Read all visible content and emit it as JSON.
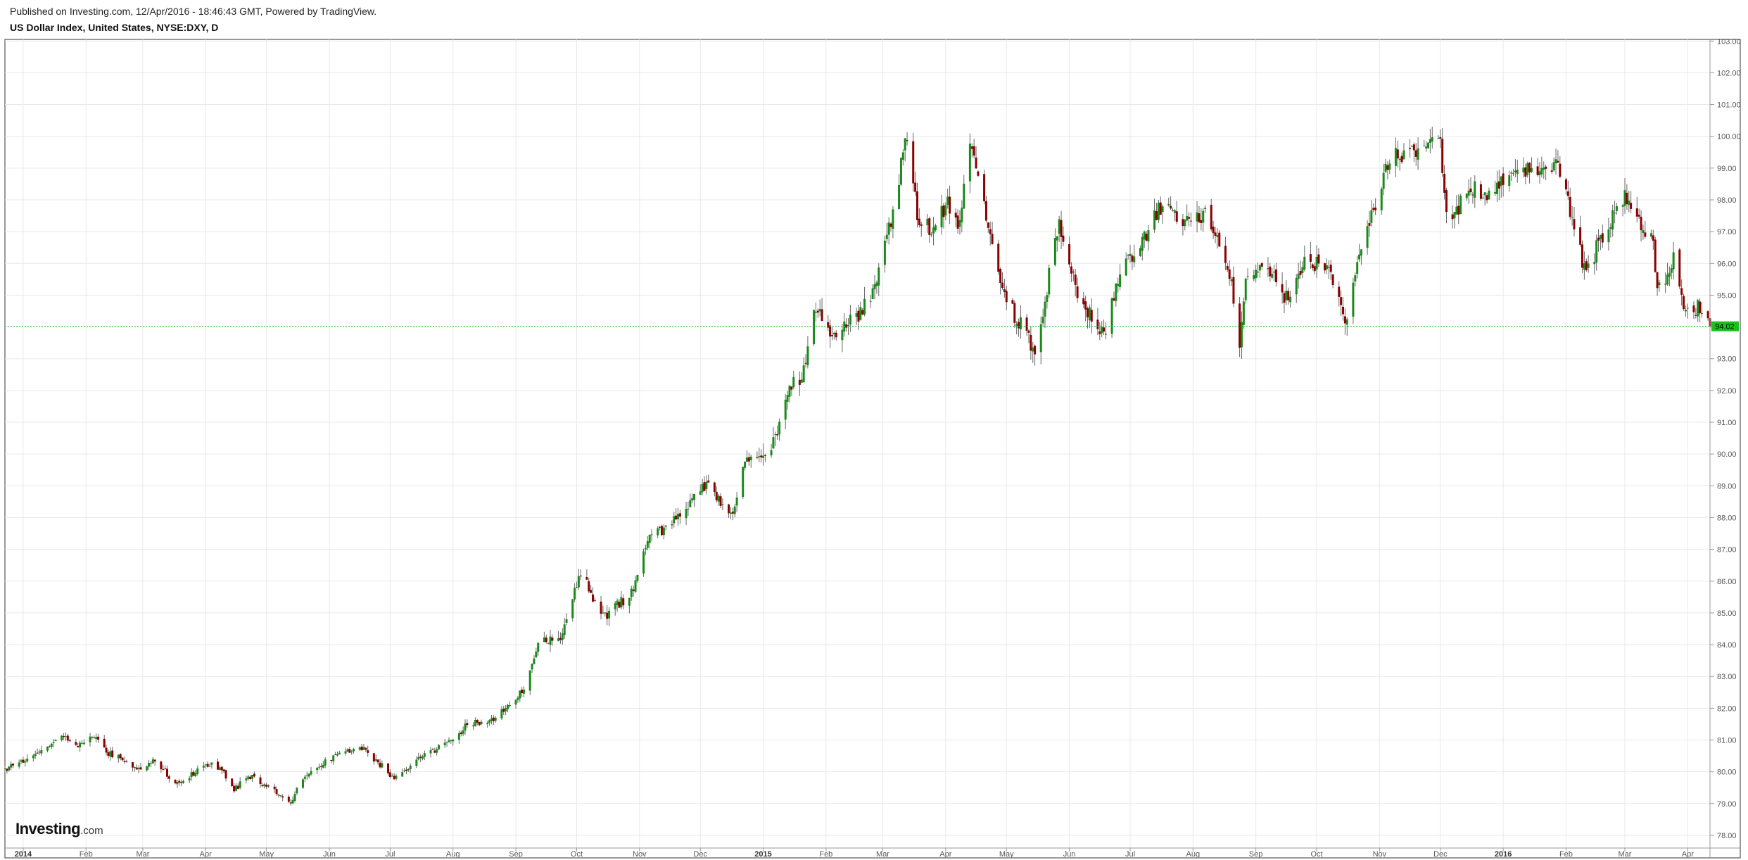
{
  "header": {
    "published": "Published on Investing.com, 12/Apr/2016 - 18:46:43 GMT, Powered by TradingView.",
    "title": "US Dollar Index, United States, NYSE:DXY, D"
  },
  "logo": {
    "main": "Investing",
    "suffix": ".com"
  },
  "colors": {
    "up": "#1a8a1a",
    "down": "#8b0000",
    "grid": "#e9e9e9",
    "last_price_line": "#28c828",
    "last_price_badge": "#19c219",
    "frame": "#333333"
  },
  "chart_data": {
    "type": "candlestick",
    "title": "US Dollar Index, United States, NYSE:DXY, D",
    "interval": "D",
    "ylim": [
      77.6,
      103.05
    ],
    "y_ticks": [
      "78.00",
      "79.00",
      "80.00",
      "81.00",
      "82.00",
      "83.00",
      "84.00",
      "85.00",
      "86.00",
      "87.00",
      "88.00",
      "89.00",
      "90.00",
      "91.00",
      "92.00",
      "93.00",
      "94.00",
      "95.00",
      "96.00",
      "97.00",
      "98.00",
      "99.00",
      "100.00",
      "101.00",
      "102.00",
      "103.00"
    ],
    "x_ticks": [
      {
        "label": "2014",
        "date": "2014-01-01",
        "bold": true
      },
      {
        "label": "Feb",
        "date": "2014-02-01"
      },
      {
        "label": "Mar",
        "date": "2014-03-01"
      },
      {
        "label": "Apr",
        "date": "2014-04-01"
      },
      {
        "label": "May",
        "date": "2014-05-01"
      },
      {
        "label": "Jun",
        "date": "2014-06-01"
      },
      {
        "label": "Jul",
        "date": "2014-07-01"
      },
      {
        "label": "Aug",
        "date": "2014-08-01"
      },
      {
        "label": "Sep",
        "date": "2014-09-01"
      },
      {
        "label": "Oct",
        "date": "2014-10-01"
      },
      {
        "label": "Nov",
        "date": "2014-11-01"
      },
      {
        "label": "Dec",
        "date": "2014-12-01"
      },
      {
        "label": "2015",
        "date": "2015-01-01",
        "bold": true
      },
      {
        "label": "Feb",
        "date": "2015-02-01"
      },
      {
        "label": "Mar",
        "date": "2015-03-01"
      },
      {
        "label": "Apr",
        "date": "2015-04-01"
      },
      {
        "label": "May",
        "date": "2015-05-01"
      },
      {
        "label": "Jun",
        "date": "2015-06-01"
      },
      {
        "label": "Jul",
        "date": "2015-07-01"
      },
      {
        "label": "Aug",
        "date": "2015-08-01"
      },
      {
        "label": "Sep",
        "date": "2015-09-01"
      },
      {
        "label": "Oct",
        "date": "2015-10-01"
      },
      {
        "label": "Nov",
        "date": "2015-11-01"
      },
      {
        "label": "Dec",
        "date": "2015-12-01"
      },
      {
        "label": "2016",
        "date": "2016-01-01",
        "bold": true
      },
      {
        "label": "Feb",
        "date": "2016-02-01"
      },
      {
        "label": "Mar",
        "date": "2016-03-01"
      },
      {
        "label": "Apr",
        "date": "2016-04-01"
      }
    ],
    "date_range": [
      "2013-12-23",
      "2016-04-12"
    ],
    "close_path": [
      {
        "date": "2013-12-23",
        "close": 80.1
      },
      {
        "date": "2014-01-08",
        "close": 80.5
      },
      {
        "date": "2014-01-20",
        "close": 81.1
      },
      {
        "date": "2014-01-28",
        "close": 80.8
      },
      {
        "date": "2014-02-03",
        "close": 81.2
      },
      {
        "date": "2014-02-12",
        "close": 80.6
      },
      {
        "date": "2014-02-28",
        "close": 80.1
      },
      {
        "date": "2014-03-07",
        "close": 80.4
      },
      {
        "date": "2014-03-17",
        "close": 79.6
      },
      {
        "date": "2014-04-04",
        "close": 80.3
      },
      {
        "date": "2014-04-10",
        "close": 80.0
      },
      {
        "date": "2014-04-15",
        "close": 79.4
      },
      {
        "date": "2014-04-22",
        "close": 79.9
      },
      {
        "date": "2014-05-08",
        "close": 79.3
      },
      {
        "date": "2014-05-12",
        "close": 79.0
      },
      {
        "date": "2014-05-22",
        "close": 80.0
      },
      {
        "date": "2014-06-06",
        "close": 80.6
      },
      {
        "date": "2014-06-18",
        "close": 80.7
      },
      {
        "date": "2014-06-30",
        "close": 80.0
      },
      {
        "date": "2014-07-02",
        "close": 79.8
      },
      {
        "date": "2014-07-15",
        "close": 80.4
      },
      {
        "date": "2014-08-01",
        "close": 81.0
      },
      {
        "date": "2014-08-08",
        "close": 81.5
      },
      {
        "date": "2014-08-20",
        "close": 81.6
      },
      {
        "date": "2014-09-05",
        "close": 82.6
      },
      {
        "date": "2014-09-12",
        "close": 84.0
      },
      {
        "date": "2014-09-24",
        "close": 84.3
      },
      {
        "date": "2014-10-03",
        "close": 86.3
      },
      {
        "date": "2014-10-10",
        "close": 85.3
      },
      {
        "date": "2014-10-15",
        "close": 84.9
      },
      {
        "date": "2014-10-28",
        "close": 85.6
      },
      {
        "date": "2014-11-05",
        "close": 87.4
      },
      {
        "date": "2014-11-14",
        "close": 87.6
      },
      {
        "date": "2014-12-05",
        "close": 89.1
      },
      {
        "date": "2014-12-16",
        "close": 88.0
      },
      {
        "date": "2014-12-23",
        "close": 89.8
      },
      {
        "date": "2015-01-05",
        "close": 90.2
      },
      {
        "date": "2015-01-14",
        "close": 92.0
      },
      {
        "date": "2015-01-22",
        "close": 92.6
      },
      {
        "date": "2015-01-26",
        "close": 94.8
      },
      {
        "date": "2015-02-03",
        "close": 93.8
      },
      {
        "date": "2015-02-18",
        "close": 94.4
      },
      {
        "date": "2015-02-26",
        "close": 95.3
      },
      {
        "date": "2015-03-06",
        "close": 97.7
      },
      {
        "date": "2015-03-13",
        "close": 100.1
      },
      {
        "date": "2015-03-18",
        "close": 97.5
      },
      {
        "date": "2015-03-26",
        "close": 97.0
      },
      {
        "date": "2015-04-02",
        "close": 98.0
      },
      {
        "date": "2015-04-07",
        "close": 97.0
      },
      {
        "date": "2015-04-13",
        "close": 99.7
      },
      {
        "date": "2015-04-22",
        "close": 97.3
      },
      {
        "date": "2015-04-30",
        "close": 95.0
      },
      {
        "date": "2015-05-15",
        "close": 93.2
      },
      {
        "date": "2015-05-27",
        "close": 97.3
      },
      {
        "date": "2015-06-05",
        "close": 95.0
      },
      {
        "date": "2015-06-18",
        "close": 93.8
      },
      {
        "date": "2015-06-26",
        "close": 95.6
      },
      {
        "date": "2015-07-08",
        "close": 96.8
      },
      {
        "date": "2015-07-17",
        "close": 97.9
      },
      {
        "date": "2015-07-31",
        "close": 97.2
      },
      {
        "date": "2015-08-07",
        "close": 97.6
      },
      {
        "date": "2015-08-14",
        "close": 96.6
      },
      {
        "date": "2015-08-21",
        "close": 95.0
      },
      {
        "date": "2015-08-24",
        "close": 93.5
      },
      {
        "date": "2015-08-27",
        "close": 95.5
      },
      {
        "date": "2015-09-04",
        "close": 96.1
      },
      {
        "date": "2015-09-18",
        "close": 94.7
      },
      {
        "date": "2015-09-25",
        "close": 96.1
      },
      {
        "date": "2015-10-07",
        "close": 95.8
      },
      {
        "date": "2015-10-15",
        "close": 94.1
      },
      {
        "date": "2015-10-23",
        "close": 96.5
      },
      {
        "date": "2015-11-06",
        "close": 99.3
      },
      {
        "date": "2015-11-20",
        "close": 99.6
      },
      {
        "date": "2015-12-01",
        "close": 100.1
      },
      {
        "date": "2015-12-03",
        "close": 98.0
      },
      {
        "date": "2015-12-08",
        "close": 97.4
      },
      {
        "date": "2015-12-15",
        "close": 98.5
      },
      {
        "date": "2015-12-24",
        "close": 98.0
      },
      {
        "date": "2016-01-05",
        "close": 99.0
      },
      {
        "date": "2016-01-15",
        "close": 99.0
      },
      {
        "date": "2016-01-28",
        "close": 99.2
      },
      {
        "date": "2016-02-03",
        "close": 97.6
      },
      {
        "date": "2016-02-11",
        "close": 95.6
      },
      {
        "date": "2016-02-18",
        "close": 96.8
      },
      {
        "date": "2016-03-01",
        "close": 98.2
      },
      {
        "date": "2016-03-07",
        "close": 97.3
      },
      {
        "date": "2016-03-15",
        "close": 96.6
      },
      {
        "date": "2016-03-17",
        "close": 95.0
      },
      {
        "date": "2016-03-25",
        "close": 96.2
      },
      {
        "date": "2016-03-30",
        "close": 94.8
      },
      {
        "date": "2016-04-06",
        "close": 94.6
      },
      {
        "date": "2016-04-12",
        "close": 94.02
      }
    ],
    "last_price": 94.02,
    "last_price_label": "94.02",
    "grid": true
  }
}
